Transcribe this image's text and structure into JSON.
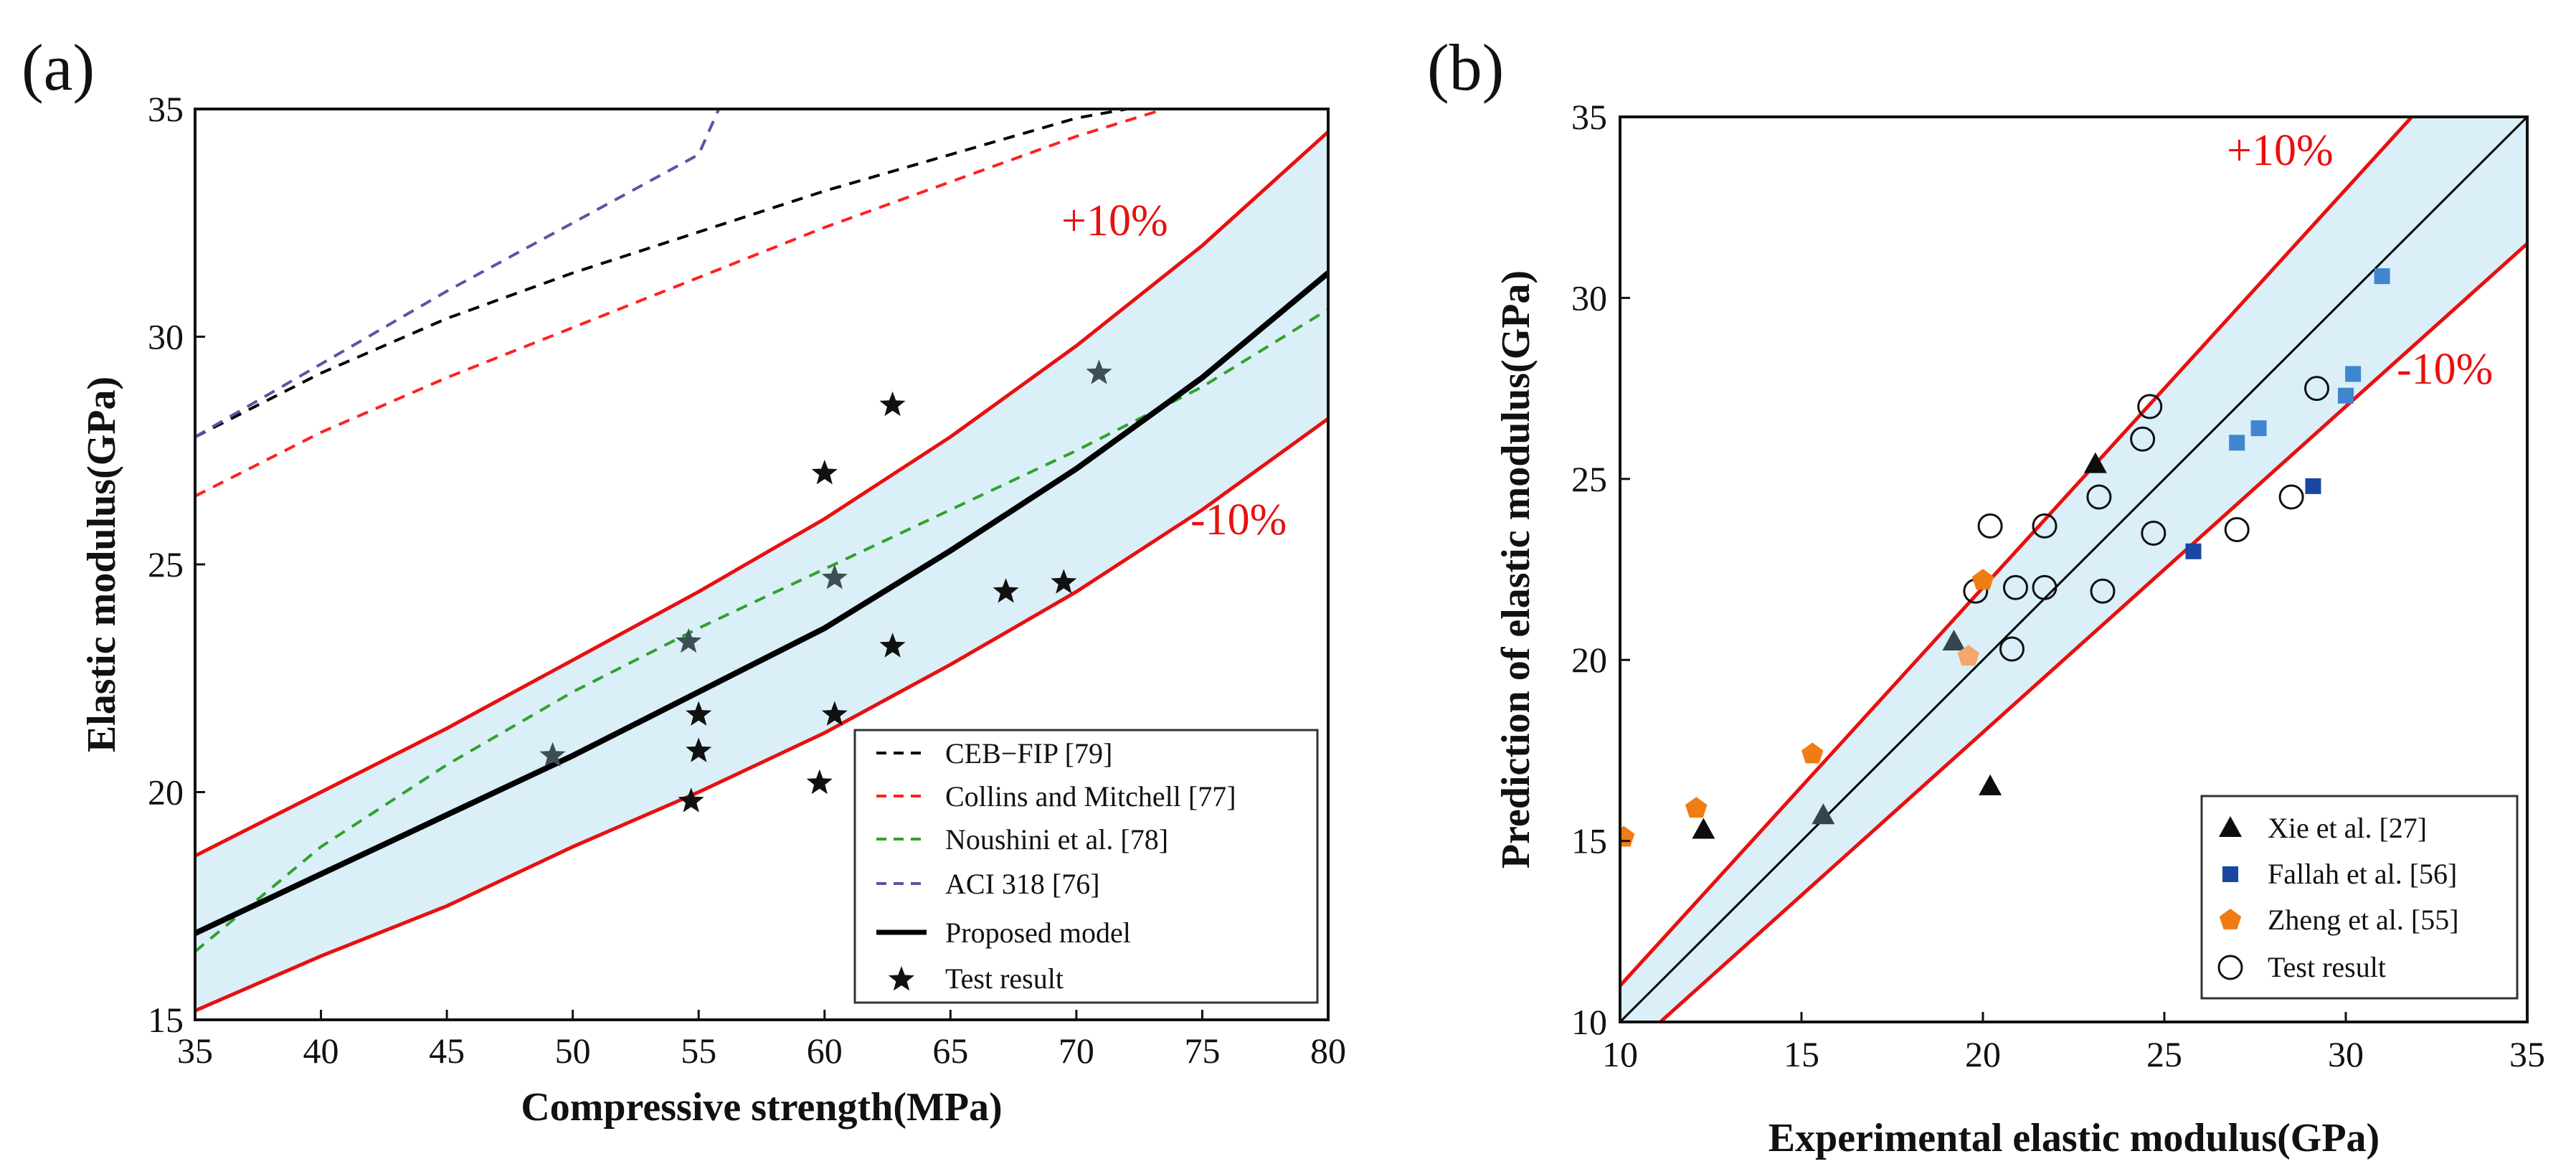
{
  "chart_data": [
    {
      "panel": "(a)",
      "type": "line",
      "xlabel": "Compressive strength(MPa)",
      "ylabel": "Elastic modulus(GPa)",
      "xlim": [
        35,
        80
      ],
      "ylim": [
        15,
        35
      ],
      "xticks": [
        "35",
        "40",
        "45",
        "50",
        "55",
        "60",
        "65",
        "70",
        "75",
        "80"
      ],
      "yticks": [
        "15",
        "20",
        "25",
        "30",
        "35"
      ],
      "band_labels": {
        "upper": "+10%",
        "lower": "-10%"
      },
      "band_color": "#daeff8",
      "band_line_color": "#e8100f",
      "band_upper": {
        "x": [
          35,
          40,
          45,
          50,
          55,
          60,
          65,
          70,
          75,
          80
        ],
        "y": [
          18.6,
          20.0,
          21.4,
          22.9,
          24.4,
          26.0,
          27.8,
          29.8,
          32.0,
          34.5
        ]
      },
      "band_lower": {
        "x": [
          35,
          40,
          45,
          50,
          55,
          60,
          65,
          70,
          75,
          80
        ],
        "y": [
          15.2,
          16.4,
          17.5,
          18.8,
          20.0,
          21.3,
          22.8,
          24.4,
          26.2,
          28.2
        ]
      },
      "series": [
        {
          "name": "CEB−FIP [79]",
          "style": "dashed",
          "color": "#000000",
          "x": [
            35,
            40,
            45,
            50,
            55,
            60,
            65,
            70,
            72
          ],
          "y": [
            27.8,
            29.2,
            30.4,
            31.4,
            32.3,
            33.2,
            34.0,
            34.8,
            35.0
          ]
        },
        {
          "name": "Collins and Mitchell [77]",
          "style": "dashed",
          "color": "#ff2020",
          "x": [
            35,
            40,
            45,
            50,
            55,
            60,
            65,
            70,
            73.5
          ],
          "y": [
            26.5,
            27.9,
            29.1,
            30.2,
            31.3,
            32.4,
            33.4,
            34.4,
            35.0
          ]
        },
        {
          "name": "Noushini et al. [78]",
          "style": "dashed",
          "color": "#2ea329",
          "x": [
            35,
            40,
            45,
            50,
            55,
            60,
            65,
            70,
            75,
            80
          ],
          "y": [
            16.5,
            18.8,
            20.6,
            22.2,
            23.6,
            24.9,
            26.2,
            27.5,
            28.9,
            30.6
          ]
        },
        {
          "name": "ACI 318 [76]",
          "style": "dashed",
          "color": "#5b55a6",
          "x": [
            35,
            40,
            45,
            50,
            55,
            55.8
          ],
          "y": [
            27.8,
            29.4,
            31.0,
            32.5,
            34.0,
            35.0
          ]
        },
        {
          "name": "Proposed model",
          "style": "solid",
          "color": "#000000",
          "x": [
            35,
            40,
            45,
            50,
            55,
            60,
            65,
            70,
            75,
            80
          ],
          "y": [
            16.9,
            18.2,
            19.5,
            20.8,
            22.2,
            23.6,
            25.3,
            27.1,
            29.1,
            31.4
          ]
        }
      ],
      "test_result": {
        "name": "Test result",
        "points_black": [
          [
            54.7,
            19.8
          ],
          [
            55.0,
            20.9
          ],
          [
            55.0,
            21.7
          ],
          [
            59.8,
            20.2
          ],
          [
            60.0,
            27.0
          ],
          [
            60.4,
            21.7
          ],
          [
            62.7,
            28.5
          ],
          [
            62.7,
            23.2
          ],
          [
            67.2,
            24.4
          ],
          [
            69.5,
            24.6
          ]
        ],
        "points_grey": [
          [
            49.2,
            20.8
          ],
          [
            54.6,
            23.3
          ],
          [
            60.4,
            24.7
          ],
          [
            70.9,
            29.2
          ]
        ]
      }
    },
    {
      "panel": "(b)",
      "type": "scatter",
      "xlabel": "Experimental elastic modulus(GPa)",
      "ylabel": "Prediction of elastic modulus(GPa)",
      "xlim": [
        10,
        35
      ],
      "ylim": [
        10,
        35
      ],
      "xticks": [
        "10",
        "15",
        "20",
        "25",
        "30",
        "35"
      ],
      "yticks": [
        "10",
        "15",
        "20",
        "25",
        "30",
        "35"
      ],
      "band_labels": {
        "upper": "+10%",
        "lower": "-10%"
      },
      "band_color": "#daeff8",
      "band_line_color": "#e8100f",
      "reference_line": "y = x",
      "band_factors": {
        "upper": 1.1,
        "lower": 0.9
      },
      "series": [
        {
          "name": "Xie et al. [27]",
          "marker": "triangle",
          "color": "#000000",
          "points_black": [
            [
              12.3,
              15.3
            ],
            [
              20.2,
              16.5
            ],
            [
              23.1,
              25.4
            ]
          ],
          "points_grey": [
            [
              15.6,
              15.7
            ],
            [
              19.2,
              20.5
            ]
          ]
        },
        {
          "name": "Fallah et al. [56]",
          "marker": "square",
          "color": "#1946a0",
          "points_dark": [
            [
              25.8,
              23.0
            ],
            [
              29.1,
              24.8
            ]
          ],
          "points_light": [
            [
              27.0,
              26.0
            ],
            [
              27.6,
              26.4
            ],
            [
              30.0,
              27.3
            ],
            [
              30.2,
              27.9
            ],
            [
              31.0,
              30.6
            ]
          ]
        },
        {
          "name": "Zheng et al. [55]",
          "marker": "pentagon",
          "color": "#f07c14",
          "points_dark": [
            [
              10.1,
              15.1
            ],
            [
              12.1,
              15.9
            ],
            [
              15.3,
              17.4
            ],
            [
              20.0,
              22.2
            ]
          ],
          "points_light": [
            [
              19.6,
              20.1
            ]
          ]
        },
        {
          "name": "Test result",
          "marker": "circle-open",
          "color": "#000000",
          "points": [
            [
              19.8,
              21.9
            ],
            [
              20.2,
              23.7
            ],
            [
              20.8,
              20.3
            ],
            [
              20.9,
              22.0
            ],
            [
              21.7,
              22.0
            ],
            [
              21.7,
              23.7
            ],
            [
              23.2,
              24.5
            ],
            [
              23.3,
              21.9
            ],
            [
              24.4,
              26.1
            ],
            [
              24.6,
              27.0
            ],
            [
              24.7,
              23.5
            ],
            [
              27.0,
              23.6
            ],
            [
              28.5,
              24.5
            ],
            [
              29.2,
              27.5
            ]
          ]
        }
      ]
    }
  ]
}
